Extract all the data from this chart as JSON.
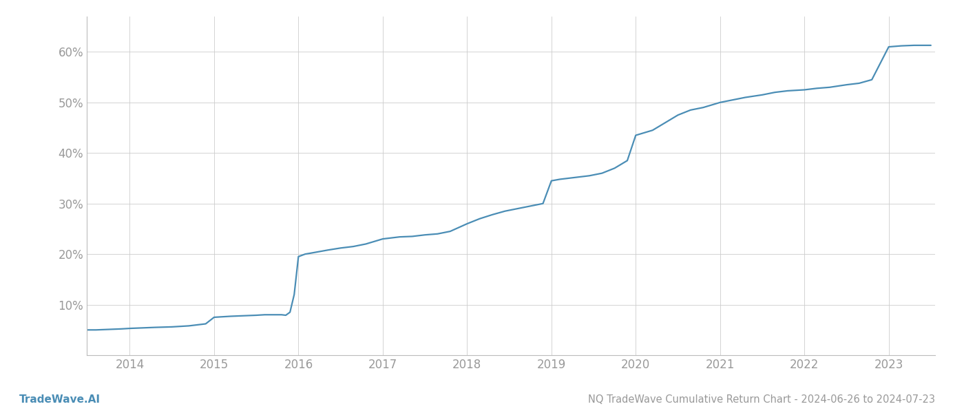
{
  "title": "NQ TradeWave Cumulative Return Chart - 2024-06-26 to 2024-07-23",
  "watermark": "TradeWave.AI",
  "line_color": "#4a8db5",
  "background_color": "#ffffff",
  "grid_color": "#cccccc",
  "tick_color": "#999999",
  "x_years": [
    2014,
    2015,
    2016,
    2017,
    2018,
    2019,
    2020,
    2021,
    2022,
    2023
  ],
  "x_data": [
    2013.49,
    2013.6,
    2013.75,
    2013.9,
    2014.0,
    2014.15,
    2014.3,
    2014.5,
    2014.7,
    2014.9,
    2015.0,
    2015.1,
    2015.2,
    2015.35,
    2015.5,
    2015.6,
    2015.7,
    2015.8,
    2015.85,
    2015.9,
    2015.95,
    2016.0,
    2016.08,
    2016.15,
    2016.25,
    2016.35,
    2016.5,
    2016.65,
    2016.8,
    2017.0,
    2017.1,
    2017.2,
    2017.35,
    2017.5,
    2017.65,
    2017.8,
    2018.0,
    2018.15,
    2018.3,
    2018.45,
    2018.6,
    2018.75,
    2018.9,
    2019.0,
    2019.1,
    2019.2,
    2019.3,
    2019.45,
    2019.6,
    2019.75,
    2019.9,
    2020.0,
    2020.1,
    2020.2,
    2020.35,
    2020.5,
    2020.65,
    2020.8,
    2021.0,
    2021.15,
    2021.3,
    2021.5,
    2021.65,
    2021.8,
    2022.0,
    2022.15,
    2022.3,
    2022.5,
    2022.65,
    2022.8,
    2023.0,
    2023.15,
    2023.3,
    2023.5
  ],
  "y_data": [
    5.0,
    5.0,
    5.1,
    5.2,
    5.3,
    5.4,
    5.5,
    5.6,
    5.8,
    6.2,
    7.5,
    7.6,
    7.7,
    7.8,
    7.9,
    8.0,
    8.0,
    8.0,
    7.9,
    8.5,
    12.0,
    19.5,
    20.0,
    20.2,
    20.5,
    20.8,
    21.2,
    21.5,
    22.0,
    23.0,
    23.2,
    23.4,
    23.5,
    23.8,
    24.0,
    24.5,
    26.0,
    27.0,
    27.8,
    28.5,
    29.0,
    29.5,
    30.0,
    34.5,
    34.8,
    35.0,
    35.2,
    35.5,
    36.0,
    37.0,
    38.5,
    43.5,
    44.0,
    44.5,
    46.0,
    47.5,
    48.5,
    49.0,
    50.0,
    50.5,
    51.0,
    51.5,
    52.0,
    52.3,
    52.5,
    52.8,
    53.0,
    53.5,
    53.8,
    54.5,
    61.0,
    61.2,
    61.3,
    61.3
  ],
  "ylim": [
    0,
    67
  ],
  "yticks": [
    10,
    20,
    30,
    40,
    50,
    60
  ],
  "xlim": [
    2013.49,
    2023.55
  ],
  "title_fontsize": 10.5,
  "watermark_fontsize": 11,
  "tick_fontsize": 12,
  "line_width": 1.6
}
